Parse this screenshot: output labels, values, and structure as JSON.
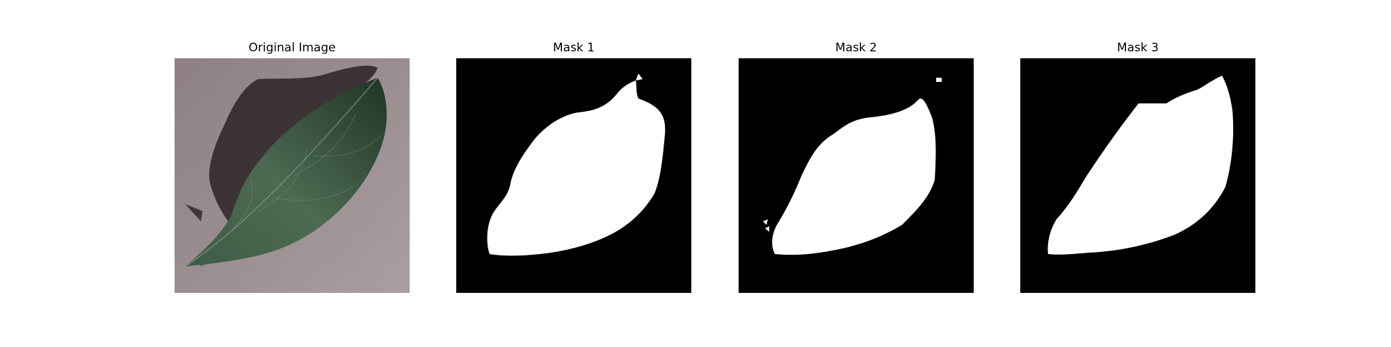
{
  "figure": {
    "panels": [
      {
        "title": "Original Image",
        "kind": "photo"
      },
      {
        "title": "Mask 1",
        "kind": "binary-mask"
      },
      {
        "title": "Mask 2",
        "kind": "binary-mask"
      },
      {
        "title": "Mask 3",
        "kind": "binary-mask"
      }
    ]
  },
  "colors": {
    "background": "#ffffff",
    "mask_background": "#000000",
    "mask_foreground": "#ffffff",
    "photo_surface": "#8d7f82",
    "leaf": "#2f4a35",
    "shadow": "#1e1a1c"
  }
}
